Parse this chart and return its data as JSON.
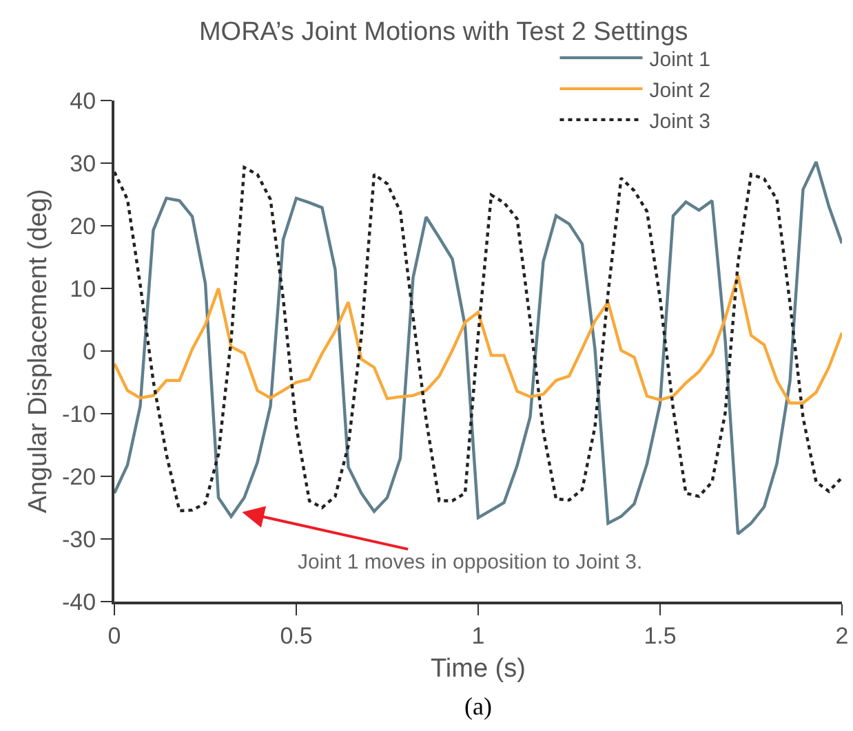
{
  "chart_data": {
    "type": "line",
    "title": "MORA’s Joint Motions with Test 2 Settings",
    "xlabel": "Time (s)",
    "ylabel": "Angular Displacement (deg)",
    "x": [
      0,
      0.036,
      0.071,
      0.107,
      0.143,
      0.179,
      0.214,
      0.25,
      0.286,
      0.321,
      0.357,
      0.393,
      0.429,
      0.464,
      0.5,
      0.536,
      0.571,
      0.607,
      0.643,
      0.679,
      0.714,
      0.75,
      0.786,
      0.821,
      0.857,
      0.893,
      0.929,
      0.964,
      1,
      1.036,
      1.071,
      1.107,
      1.143,
      1.179,
      1.214,
      1.25,
      1.286,
      1.321,
      1.357,
      1.393,
      1.429,
      1.464,
      1.5,
      1.536,
      1.571,
      1.607,
      1.643,
      1.679,
      1.714,
      1.75,
      1.786,
      1.821,
      1.857,
      1.893,
      1.929,
      1.964,
      2
    ],
    "series": [
      {
        "name": "Joint 1",
        "color": "#5f7f8c",
        "line_style": "solid",
        "values": [
          -22.7,
          -18.2,
          -8.8,
          19.3,
          24.4,
          24.0,
          21.5,
          10.8,
          -23.4,
          -26.4,
          -23.4,
          -17.8,
          -8.8,
          17.8,
          24.4,
          23.7,
          22.9,
          13.0,
          -18.5,
          -22.7,
          -25.6,
          -23.4,
          -17.1,
          11.7,
          21.4,
          18.1,
          14.7,
          4.0,
          -26.6,
          -25.4,
          -24.2,
          -18.3,
          -10.5,
          14.3,
          21.6,
          20.3,
          17.1,
          0.3,
          -27.5,
          -26.4,
          -24.4,
          -18.0,
          -8.4,
          21.6,
          23.8,
          22.5,
          24.0,
          1.8,
          -29.2,
          -27.5,
          -24.9,
          -18.0,
          -4.8,
          25.8,
          30.2,
          23.1,
          17.2
        ]
      },
      {
        "name": "Joint 2",
        "color": "#f8a93a",
        "line_style": "solid",
        "values": [
          -2.0,
          -6.3,
          -7.5,
          -7.1,
          -4.7,
          -4.7,
          0.3,
          4.2,
          10.0,
          0.7,
          -0.4,
          -6.3,
          -7.5,
          -6.3,
          -5.0,
          -4.5,
          -0.4,
          3.2,
          7.8,
          -1.3,
          -2.6,
          -7.6,
          -7.3,
          -7.1,
          -6.3,
          -4.0,
          0.1,
          4.6,
          6.2,
          -0.7,
          -0.7,
          -6.4,
          -7.3,
          -6.9,
          -4.7,
          -4.0,
          0.4,
          4.8,
          7.8,
          0.1,
          -1.0,
          -7.2,
          -7.8,
          -7.2,
          -5.1,
          -3.3,
          -0.4,
          5.2,
          12.1,
          2.5,
          1.0,
          -4.7,
          -8.3,
          -8.3,
          -6.6,
          -2.6,
          2.9
        ]
      },
      {
        "name": "Joint 3",
        "color": "#222222",
        "line_style": "dotted",
        "values": [
          28.6,
          24.2,
          10.6,
          -4.8,
          -16.5,
          -25.5,
          -25.4,
          -24.3,
          -16.5,
          1.8,
          29.3,
          28.2,
          24.2,
          8.4,
          -12.1,
          -23.9,
          -25.0,
          -23.2,
          -15.1,
          2.5,
          28.2,
          26.7,
          22.3,
          5.5,
          -11.0,
          -23.9,
          -23.9,
          -22.7,
          2.5,
          24.9,
          23.7,
          21.1,
          4.8,
          -12.8,
          -23.6,
          -23.8,
          -22.1,
          -12.1,
          9.2,
          27.6,
          25.6,
          22.3,
          8.4,
          -9.2,
          -22.7,
          -23.2,
          -20.9,
          -9.9,
          14.0,
          28.2,
          27.5,
          24.2,
          7.7,
          -10.6,
          -20.9,
          -22.4,
          -20.2
        ]
      }
    ],
    "xlim": [
      0,
      2
    ],
    "xticks": [
      0,
      0.5,
      1,
      1.5,
      2
    ],
    "ylim": [
      -40,
      40
    ],
    "yticks": [
      -40,
      -30,
      -20,
      -10,
      0,
      10,
      20,
      30,
      40
    ],
    "grid": false,
    "legend": "top right",
    "marker": "none",
    "annotations": [
      {
        "text": "Joint 1 moves in opposition to Joint 3.",
        "x": 0.351,
        "y": -25.7
      },
      "(a)"
    ]
  }
}
